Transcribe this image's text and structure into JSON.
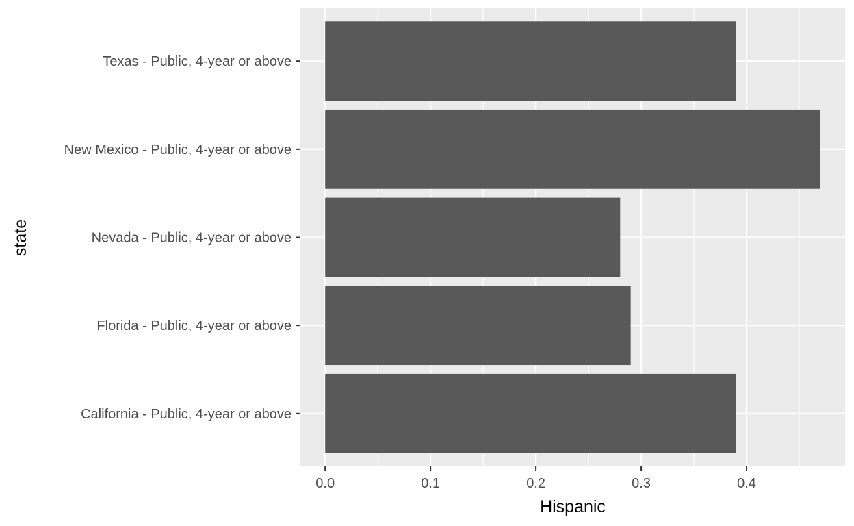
{
  "chart_data": {
    "type": "bar",
    "orientation": "horizontal",
    "categories": [
      "California - Public, 4-year or above",
      "Florida - Public, 4-year or above",
      "Nevada - Public, 4-year or above",
      "New Mexico - Public, 4-year or above",
      "Texas - Public, 4-year or above"
    ],
    "values": [
      0.39,
      0.29,
      0.28,
      0.47,
      0.39
    ],
    "xlabel": "Hispanic",
    "ylabel": "state",
    "xlim": [
      -0.0235,
      0.4935
    ],
    "x_ticks": [
      0.0,
      0.1,
      0.2,
      0.3,
      0.4
    ],
    "x_tick_labels": [
      "0.0",
      "0.1",
      "0.2",
      "0.3",
      "0.4"
    ],
    "grid": true,
    "colors": {
      "panel": "#ebebeb",
      "bar": "#595959",
      "grid": "#ffffff",
      "tick_text": "#4d4d4d",
      "tick_mark": "#333333"
    }
  }
}
